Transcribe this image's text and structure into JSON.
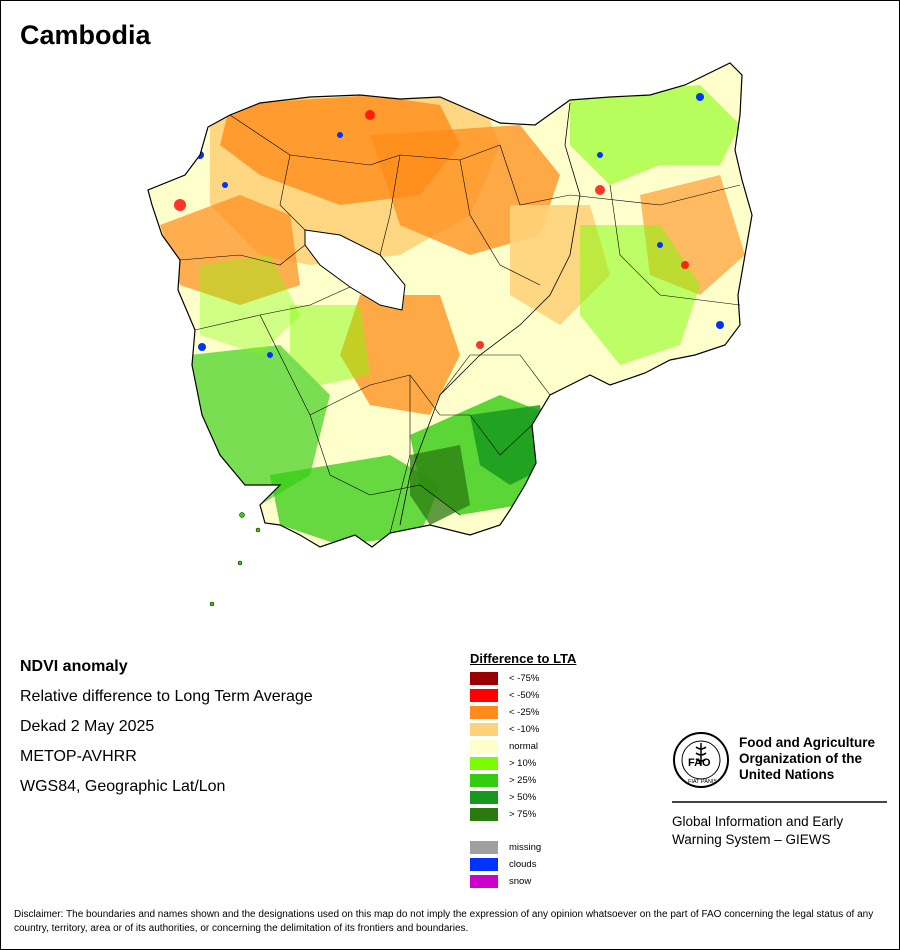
{
  "title": "Cambodia",
  "info": {
    "product": "NDVI anomaly",
    "description": "Relative difference to Long Term Average",
    "period": "Dekad 2 May 2025",
    "sensor": "METOP-AVHRR",
    "projection": "WGS84, Geographic Lat/Lon"
  },
  "legend": {
    "title": "Difference to LTA",
    "classes": [
      {
        "label": "< -75%",
        "color": "#990000"
      },
      {
        "label": "< -50%",
        "color": "#ff0000"
      },
      {
        "label": "< -25%",
        "color": "#ff8c1a"
      },
      {
        "label": "< -10%",
        "color": "#ffd27a"
      },
      {
        "label": "normal",
        "color": "#ffffcc"
      },
      {
        "label": "> 10%",
        "color": "#7cfc00"
      },
      {
        "label": "> 25%",
        "color": "#33cc11"
      },
      {
        "label": "> 50%",
        "color": "#16991c"
      },
      {
        "label": "> 75%",
        "color": "#2a7a0f"
      }
    ],
    "extra": [
      {
        "label": "missing",
        "color": "#a0a0a0"
      },
      {
        "label": "clouds",
        "color": "#0033ff"
      },
      {
        "label": "snow",
        "color": "#cc00cc"
      }
    ]
  },
  "fao": {
    "logo_text": "FAO",
    "logo_motto": "FIAT PANIS",
    "name_line1": "Food and Agriculture",
    "name_line2": "Organization of the",
    "name_line3": "United Nations",
    "giews_line1": "Global Information and Early",
    "giews_line2": "Warning System – GIEWS"
  },
  "disclaimer": "Disclaimer: The boundaries and names shown and the designations used on this map do not imply the expression of any opinion whatsoever on the part of FAO concerning the legal status of any country, territory, area or of its authorities, or concerning the delimitation of its frontiers and boundaries."
}
